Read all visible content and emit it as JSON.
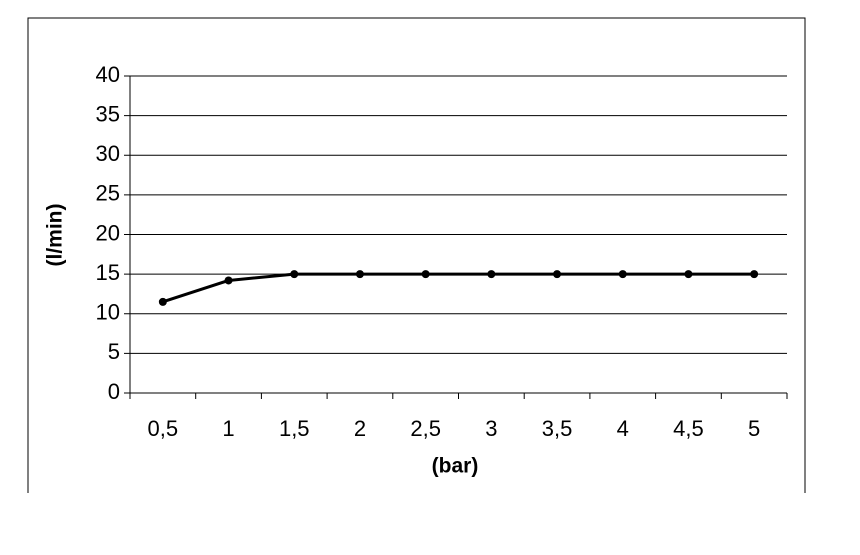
{
  "chart_data": {
    "type": "line",
    "x_label": "(bar)",
    "y_label": "(l/min)",
    "categories": [
      "0,5",
      "1",
      "1,5",
      "2",
      "2,5",
      "3",
      "3,5",
      "4",
      "4,5",
      "5"
    ],
    "values": [
      11.5,
      14.2,
      15,
      15,
      15,
      15,
      15,
      15,
      15,
      15
    ],
    "color": "#000000",
    "ylim": [
      0,
      40
    ],
    "yticks": [
      0,
      5,
      10,
      15,
      20,
      25,
      30,
      35,
      40
    ],
    "grid": true
  }
}
